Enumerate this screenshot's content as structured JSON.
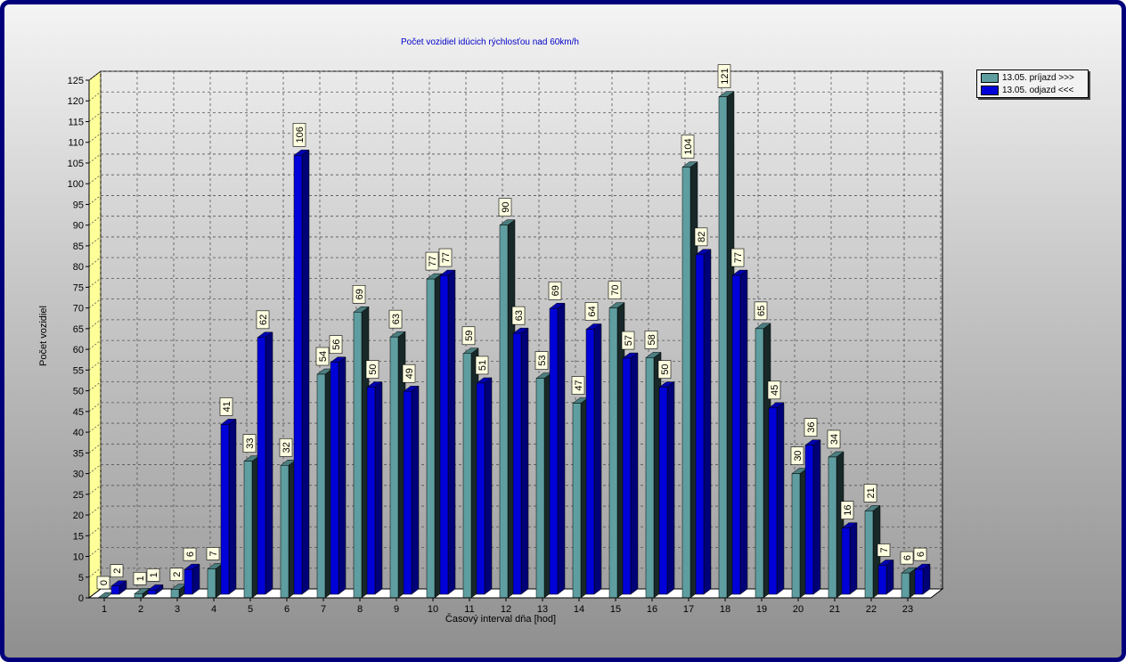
{
  "chart_data": {
    "type": "bar",
    "title": "Počet vozidiel idúcich rýchlosťou nad 60km/h",
    "xlabel": "Časový interval dňa [hod]",
    "ylabel": "Počet vozidiel",
    "ylim": [
      0,
      125
    ],
    "ytick_step": 5,
    "grid": true,
    "legend_position": "top-right",
    "categories": [
      "1",
      "2",
      "3",
      "4",
      "5",
      "6",
      "7",
      "8",
      "9",
      "10",
      "11",
      "12",
      "13",
      "14",
      "15",
      "16",
      "17",
      "18",
      "19",
      "20",
      "21",
      "22",
      "23"
    ],
    "series": [
      {
        "name": "13.05.  príjazd >>>",
        "color": "#5f9ea0",
        "values": [
          0,
          1,
          2,
          7,
          33,
          32,
          54,
          69,
          63,
          77,
          59,
          90,
          53,
          47,
          70,
          58,
          104,
          121,
          65,
          30,
          34,
          21,
          6
        ]
      },
      {
        "name": "13.05.  odjazd <<<",
        "color": "#0000d8",
        "values": [
          2,
          1,
          6,
          41,
          62,
          106,
          56,
          50,
          49,
          77,
          51,
          63,
          69,
          64,
          57,
          50,
          82,
          77,
          45,
          36,
          16,
          7,
          6
        ]
      }
    ]
  }
}
